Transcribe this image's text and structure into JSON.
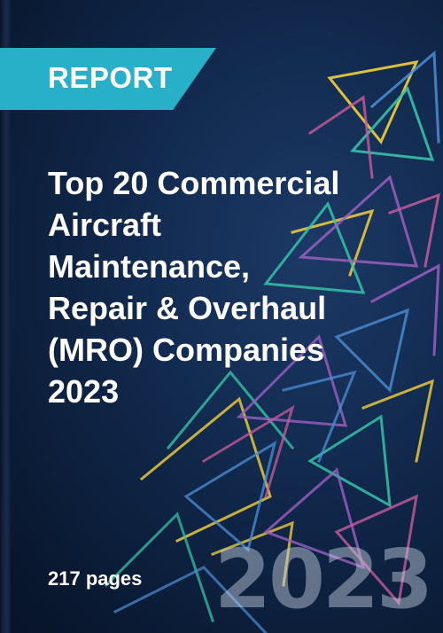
{
  "badge": {
    "label": "REPORT"
  },
  "title": {
    "lines": [
      "Top 20 Commercial",
      "Aircraft",
      "Maintenance,",
      "Repair & Overhaul",
      "(MRO) Companies",
      "2023"
    ]
  },
  "meta": {
    "pages": "217 pages"
  },
  "watermark": {
    "year": "2023"
  },
  "colors": {
    "background": "#0d1e3a",
    "badge": "#27b0c8",
    "text": "#ffffff",
    "art": [
      "#e8c83a",
      "#35c2a8",
      "#9b5fc0",
      "#4b8fd6",
      "#c75b9b"
    ]
  }
}
